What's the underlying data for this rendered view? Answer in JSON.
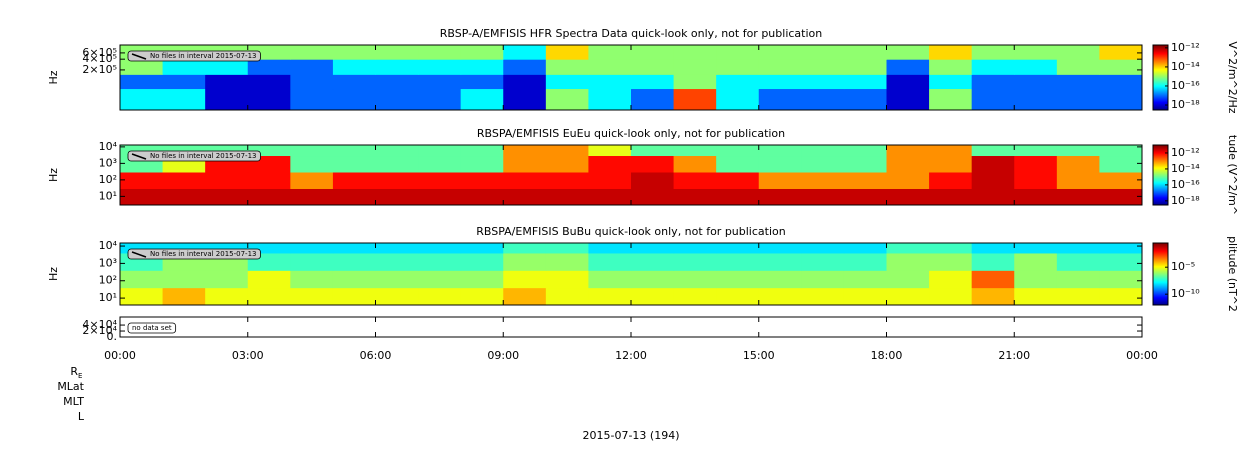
{
  "chart_data": [
    {
      "type": "heatmap",
      "title": "RBSP-A/EMFISIS  HFR Spectra Data quick-look only, not for publication",
      "ylabel": "Hz",
      "yscale": "log",
      "ylim": [
        15000,
        1000000
      ],
      "yticks": [
        {
          "value": 600000,
          "label": "6×10⁵"
        },
        {
          "value": 400000,
          "label": "4×10⁵"
        },
        {
          "value": 200000,
          "label": "2×10⁵"
        }
      ],
      "note": "No files in interval 2015-07-13",
      "bins": [
        0,
        1,
        2,
        3,
        4,
        5,
        6,
        7,
        8,
        9,
        10,
        11,
        12,
        13,
        14,
        15,
        16,
        17,
        18,
        19,
        20,
        21,
        22,
        23,
        24
      ],
      "y_bins": [
        15000,
        60000,
        150000,
        400000,
        1000000
      ],
      "zlabel": "V^2/m^2/Hz",
      "zscale": "log",
      "zlim": [
        3e-19,
        2e-12
      ],
      "zticks": [
        {
          "value": 1e-12,
          "label": "10⁻¹²"
        },
        {
          "value": 1e-14,
          "label": "10⁻¹⁴"
        },
        {
          "value": 1e-16,
          "label": "10⁻¹⁶"
        },
        {
          "value": 1e-18,
          "label": "10⁻¹⁸"
        }
      ],
      "z": [
        [
          1e-16,
          1e-16,
          1e-18,
          1e-18,
          1e-17,
          1e-17,
          1e-17,
          1e-17,
          1e-16,
          1e-18,
          1e-15,
          1e-16,
          1e-17,
          1e-13,
          1e-16,
          1e-17,
          1e-17,
          1e-17,
          1e-18,
          1e-15,
          1e-17,
          1e-17,
          1e-17,
          1e-17
        ],
        [
          1e-17,
          1e-17,
          1e-18,
          1e-18,
          1e-17,
          1e-17,
          1e-17,
          1e-17,
          1e-17,
          1e-18,
          1e-16,
          1e-16,
          1e-16,
          1e-15,
          1e-16,
          1e-16,
          1e-16,
          1e-16,
          1e-18,
          1e-16,
          1e-17,
          1e-17,
          1e-17,
          1e-17
        ],
        [
          1e-15,
          1e-16,
          1e-16,
          1e-17,
          1e-17,
          1e-16,
          1e-16,
          1e-16,
          1e-16,
          1e-17,
          1e-15,
          1e-15,
          1e-15,
          1e-15,
          1e-15,
          1e-15,
          1e-15,
          1e-15,
          1e-17,
          1e-15,
          1e-16,
          1e-16,
          1e-15,
          1e-15
        ],
        [
          1e-15,
          1e-15,
          1e-15,
          1e-15,
          1e-15,
          1e-15,
          1e-15,
          1e-15,
          1e-15,
          1e-16,
          1e-14,
          1e-15,
          1e-15,
          1e-15,
          1e-15,
          1e-15,
          1e-15,
          1e-15,
          1e-15,
          1e-14,
          1e-15,
          1e-15,
          1e-15,
          1e-14
        ]
      ]
    },
    {
      "type": "heatmap",
      "title": "RBSPA/EMFISIS  EuEu quick-look only, not for publication",
      "ylabel": "Hz",
      "yscale": "log",
      "ylim": [
        3,
        13000
      ],
      "yticks": [
        {
          "value": 10000,
          "label": "10⁴"
        },
        {
          "value": 1000,
          "label": "10³"
        },
        {
          "value": 100,
          "label": "10²"
        },
        {
          "value": 10,
          "label": "10¹"
        }
      ],
      "note": "No files in interval 2015-07-13",
      "bins": [
        0,
        1,
        2,
        3,
        4,
        5,
        6,
        7,
        8,
        9,
        10,
        11,
        12,
        13,
        14,
        15,
        16,
        17,
        18,
        19,
        20,
        21,
        22,
        23,
        24
      ],
      "y_bins": [
        3,
        30,
        300,
        3000,
        13000
      ],
      "zlabel": "tude (V^2/m^",
      "zscale": "log",
      "zlim": [
        3e-19,
        1e-11
      ],
      "zticks": [
        {
          "value": 1e-12,
          "label": "10⁻¹²"
        },
        {
          "value": 1e-14,
          "label": "10⁻¹⁴"
        },
        {
          "value": 1e-16,
          "label": "10⁻¹⁶"
        },
        {
          "value": 1e-18,
          "label": "10⁻¹⁸"
        }
      ],
      "z": [
        [
          3e-12,
          3e-12,
          3e-12,
          3e-12,
          3e-12,
          3e-12,
          3e-12,
          3e-12,
          3e-12,
          3e-12,
          3e-12,
          3e-12,
          3e-12,
          3e-12,
          3e-12,
          3e-12,
          3e-12,
          3e-12,
          3e-12,
          3e-12,
          3e-12,
          3e-12,
          3e-12,
          3e-12
        ],
        [
          1e-12,
          1e-12,
          1e-12,
          1e-12,
          1e-13,
          1e-12,
          1e-12,
          1e-12,
          1e-12,
          1e-12,
          1e-12,
          1e-12,
          3e-12,
          1e-12,
          1e-12,
          1e-13,
          1e-13,
          1e-13,
          1e-13,
          1e-12,
          3e-12,
          1e-12,
          1e-13,
          1e-13
        ],
        [
          1e-15,
          1e-14,
          1e-12,
          1e-12,
          1e-15,
          1e-15,
          1e-15,
          1e-15,
          1e-15,
          1e-13,
          1e-13,
          1e-12,
          1e-12,
          1e-13,
          1e-15,
          1e-15,
          1e-15,
          1e-15,
          1e-13,
          1e-13,
          3e-12,
          1e-12,
          1e-13,
          1e-15
        ],
        [
          1e-15,
          1e-15,
          1e-15,
          1e-15,
          1e-15,
          1e-15,
          1e-15,
          1e-15,
          1e-15,
          1e-13,
          1e-13,
          1e-14,
          1e-15,
          1e-15,
          1e-15,
          1e-15,
          1e-15,
          1e-15,
          1e-13,
          1e-13,
          1e-15,
          1e-15,
          1e-15,
          1e-15
        ]
      ]
    },
    {
      "type": "heatmap",
      "title": "RBSPA/EMFISIS  BuBu quick-look only, not for publication",
      "ylabel": "Hz",
      "yscale": "log",
      "ylim": [
        4,
        15000
      ],
      "yticks": [
        {
          "value": 10000,
          "label": "10⁴"
        },
        {
          "value": 1000,
          "label": "10³"
        },
        {
          "value": 100,
          "label": "10²"
        },
        {
          "value": 10,
          "label": "10¹"
        }
      ],
      "note": "No files in interval 2015-07-13",
      "bins": [
        0,
        1,
        2,
        3,
        4,
        5,
        6,
        7,
        8,
        9,
        10,
        11,
        12,
        13,
        14,
        15,
        16,
        17,
        18,
        19,
        20,
        21,
        22,
        23,
        24
      ],
      "y_bins": [
        4,
        40,
        400,
        4000,
        15000
      ],
      "zlabel": "plitude (nT^2",
      "zscale": "log",
      "zlim": [
        1e-12,
        0.3
      ],
      "zticks": [
        {
          "value": 1e-05,
          "label": "10⁻⁵"
        },
        {
          "value": 1e-10,
          "label": "10⁻¹⁰"
        }
      ],
      "z": [
        [
          1e-05,
          0.0001,
          1e-05,
          1e-05,
          1e-05,
          1e-05,
          1e-05,
          1e-05,
          1e-05,
          0.0001,
          1e-05,
          1e-05,
          1e-05,
          1e-05,
          1e-05,
          1e-05,
          1e-05,
          1e-05,
          1e-05,
          1e-05,
          0.0001,
          1e-05,
          1e-05,
          1e-05
        ],
        [
          1e-06,
          1e-06,
          1e-06,
          1e-05,
          1e-06,
          1e-06,
          1e-06,
          1e-06,
          1e-06,
          1e-05,
          1e-05,
          1e-06,
          1e-06,
          1e-06,
          1e-06,
          1e-06,
          1e-06,
          1e-06,
          1e-06,
          1e-05,
          0.001,
          1e-06,
          1e-06,
          1e-06
        ],
        [
          1e-07,
          1e-06,
          1e-06,
          1e-07,
          1e-07,
          1e-07,
          1e-07,
          1e-07,
          1e-07,
          1e-06,
          1e-06,
          1e-07,
          1e-07,
          1e-07,
          1e-07,
          1e-07,
          1e-07,
          1e-07,
          1e-06,
          1e-06,
          1e-07,
          1e-06,
          1e-07,
          1e-07
        ],
        [
          1e-08,
          1e-08,
          1e-08,
          1e-08,
          1e-08,
          1e-08,
          1e-08,
          1e-08,
          1e-08,
          1e-07,
          1e-07,
          1e-08,
          1e-08,
          1e-08,
          1e-08,
          1e-08,
          1e-08,
          1e-08,
          1e-07,
          1e-07,
          1e-08,
          1e-08,
          1e-08,
          1e-08
        ]
      ]
    },
    {
      "type": "empty",
      "yscale": "linear",
      "ylim": [
        0,
        67000
      ],
      "yticks": [
        {
          "value": 40000,
          "label": "4×10⁴"
        },
        {
          "value": 20000,
          "label": "2×10⁴"
        },
        {
          "value": 0,
          "label": "0."
        }
      ],
      "note": "no data set",
      "xlim": [
        0,
        24
      ],
      "xticks": [
        {
          "value": 0,
          "label": "00:00"
        },
        {
          "value": 3,
          "label": "03:00"
        },
        {
          "value": 6,
          "label": "06:00"
        },
        {
          "value": 9,
          "label": "09:00"
        },
        {
          "value": 12,
          "label": "12:00"
        },
        {
          "value": 15,
          "label": "15:00"
        },
        {
          "value": 18,
          "label": "18:00"
        },
        {
          "value": 21,
          "label": "21:00"
        },
        {
          "value": 24,
          "label": "00:00"
        }
      ],
      "xlabel": "2015-07-13 (194)",
      "ephemeris_labels": [
        "R",
        "MLat",
        "MLT",
        "L"
      ],
      "ephemeris_subscript": "E"
    }
  ]
}
